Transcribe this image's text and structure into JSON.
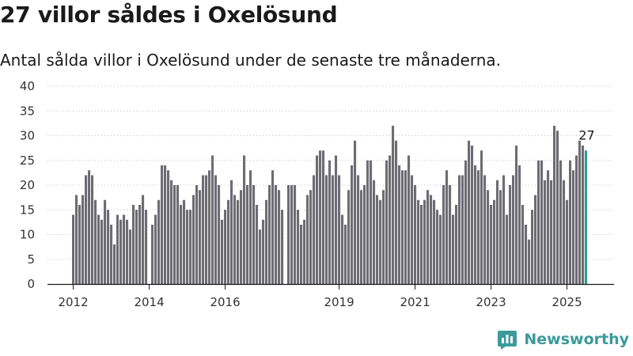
{
  "title": "27 villor såldes i Oxelösund",
  "subtitle": "Antal sålda villor i Oxelösund under de senaste tre månaderna.",
  "brand": {
    "name": "Newsworthy",
    "icon": "newsworthy-logo-icon"
  },
  "colors": {
    "bar": "#6d6c72",
    "highlight": "#2a9d96",
    "axis": "#1a1a1a",
    "grid": "#bfbfbf"
  },
  "chart_data": {
    "type": "bar",
    "title": "",
    "xlabel": "",
    "ylabel": "",
    "ylim": [
      0,
      40
    ],
    "yticks": [
      0,
      5,
      10,
      15,
      20,
      25,
      30,
      35,
      40
    ],
    "grid": true,
    "x_tick_labels": [
      "2012",
      "2014",
      "2016",
      "2019",
      "2021",
      "2023",
      "2025"
    ],
    "start_month": "2012-01",
    "values": [
      14,
      18,
      16,
      18,
      22,
      23,
      22,
      17,
      14,
      13,
      17,
      15,
      12,
      8,
      14,
      13,
      14,
      13,
      11,
      16,
      15,
      16,
      18,
      15,
      0,
      12,
      14,
      17,
      24,
      24,
      23,
      21,
      20,
      20,
      16,
      17,
      15,
      15,
      18,
      20,
      19,
      22,
      22,
      23,
      26,
      22,
      20,
      13,
      15,
      17,
      21,
      18,
      17,
      19,
      26,
      20,
      23,
      20,
      16,
      11,
      13,
      17,
      20,
      23,
      20,
      19,
      15,
      0,
      20,
      20,
      20,
      15,
      12,
      13,
      18,
      19,
      22,
      26,
      27,
      27,
      22,
      25,
      22,
      26,
      22,
      14,
      12,
      19,
      24,
      29,
      22,
      19,
      20,
      25,
      25,
      21,
      18,
      17,
      19,
      25,
      26,
      32,
      29,
      24,
      23,
      23,
      26,
      22,
      20,
      17,
      16,
      17,
      19,
      18,
      17,
      15,
      14,
      20,
      23,
      20,
      14,
      16,
      22,
      22,
      25,
      29,
      28,
      24,
      23,
      27,
      22,
      19,
      16,
      17,
      21,
      19,
      22,
      14,
      20,
      22,
      28,
      24,
      16,
      12,
      9,
      15,
      18,
      25,
      25,
      21,
      23,
      21,
      32,
      31,
      25,
      21,
      17,
      25,
      23,
      26,
      29,
      28,
      27
    ],
    "highlight_label": "27"
  }
}
